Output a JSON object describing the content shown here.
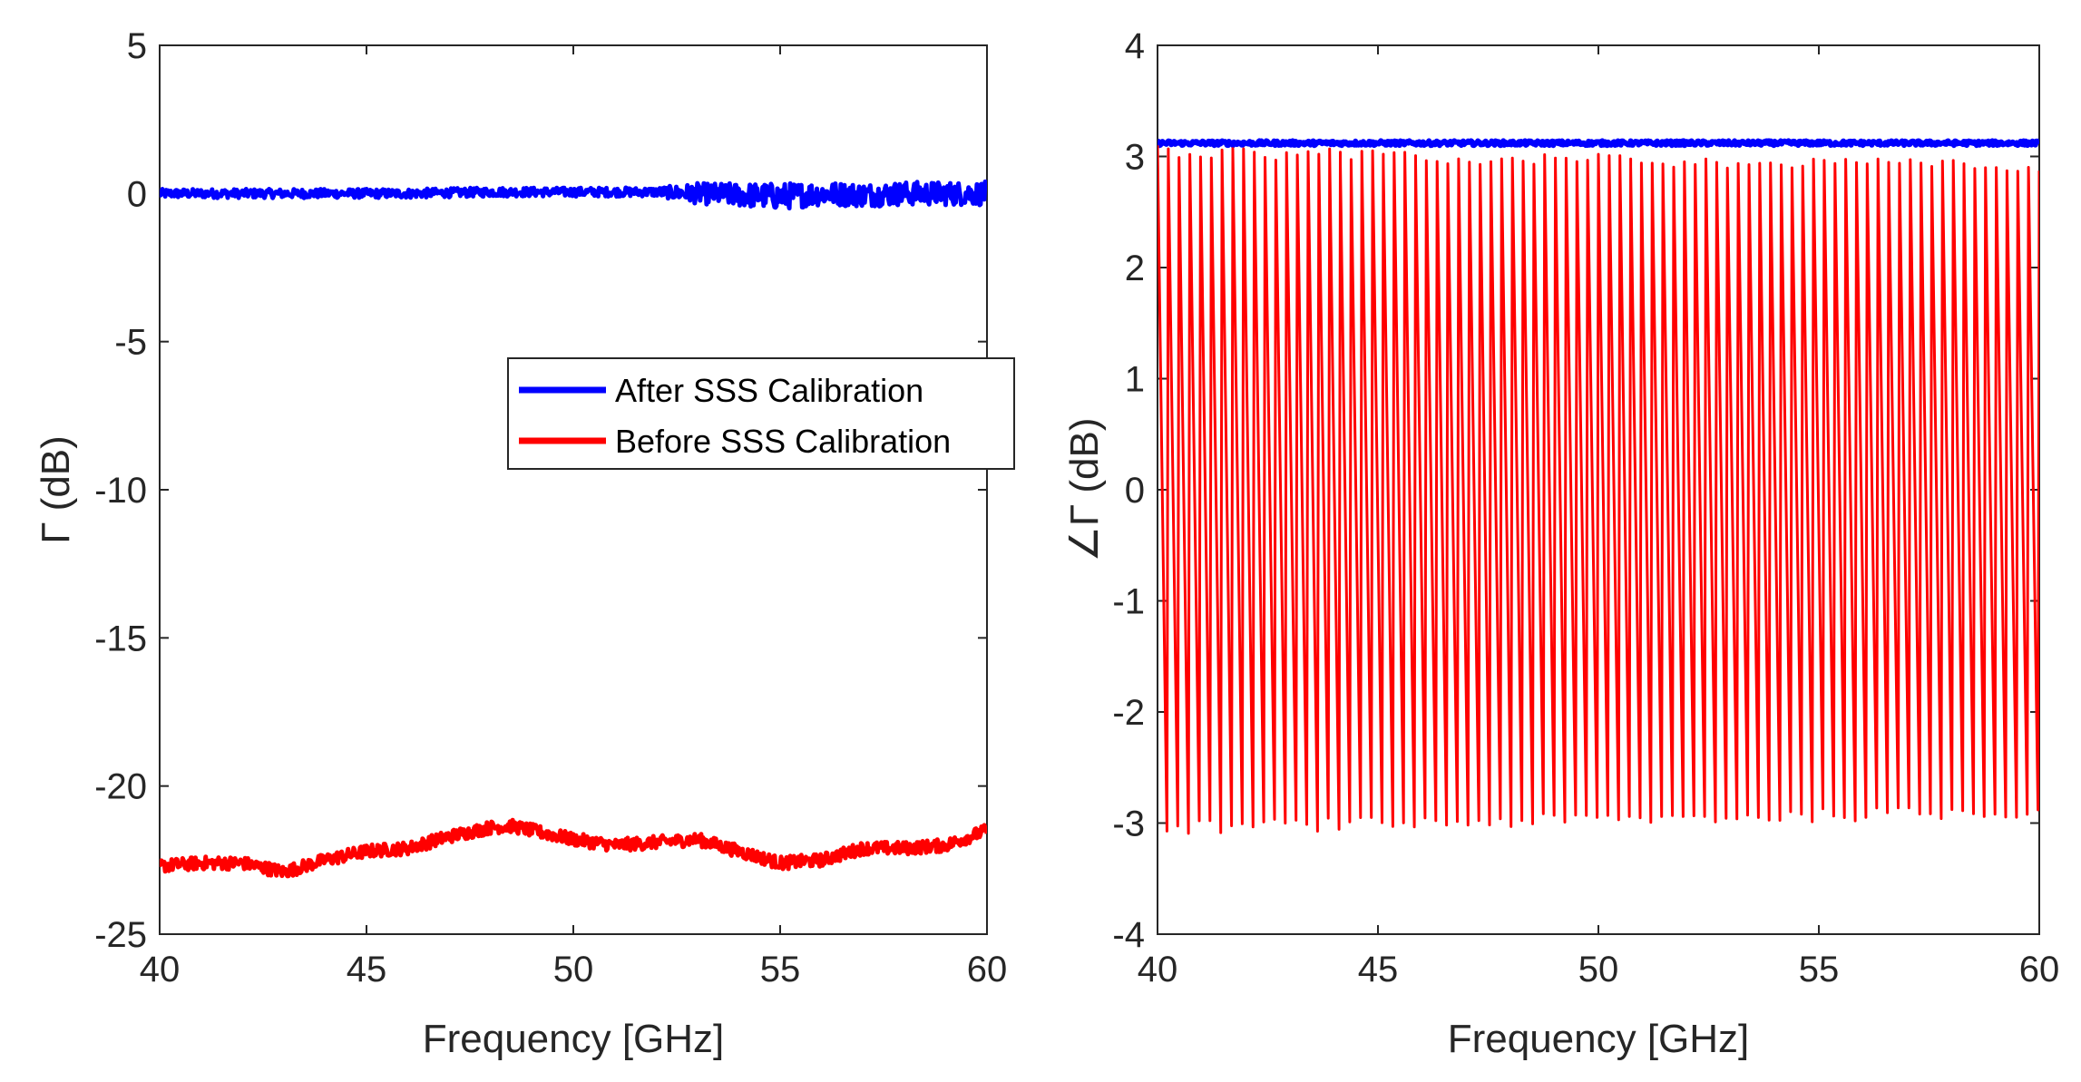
{
  "chart_data": [
    {
      "type": "line",
      "panel": "left",
      "title": "",
      "xlabel": "Frequency [GHz]",
      "ylabel": "Γ (dB)",
      "xlim": [
        40,
        60
      ],
      "ylim": [
        -25,
        5
      ],
      "xticks": [
        40,
        45,
        50,
        55,
        60
      ],
      "yticks": [
        5,
        0,
        -5,
        -10,
        -15,
        -20,
        -25
      ],
      "xtick_labels": [
        "40",
        "45",
        "50",
        "55",
        "60"
      ],
      "ytick_labels": [
        "5",
        "0",
        "-5",
        "-10",
        "-15",
        "-20",
        "-25"
      ],
      "legend": {
        "placement": "center-right",
        "entries": [
          "After SSS Calibration",
          "Before SSS Calibration"
        ]
      },
      "series": [
        {
          "name": "After SSS Calibration",
          "color": "#0000ff",
          "x": [
            40,
            42,
            44,
            46,
            48,
            50,
            52,
            53,
            54,
            55,
            56,
            57,
            58,
            59,
            60
          ],
          "y": [
            0,
            0,
            0,
            0,
            0.05,
            0.05,
            0.05,
            0,
            -0.05,
            -0.1,
            0,
            -0.05,
            0,
            0,
            0
          ],
          "noise_amplitude": [
            0.15,
            0.15,
            0.15,
            0.15,
            0.15,
            0.15,
            0.15,
            0.35,
            0.4,
            0.45,
            0.4,
            0.4,
            0.4,
            0.4,
            0.4
          ]
        },
        {
          "name": "Before SSS Calibration",
          "color": "#ff0000",
          "x": [
            40,
            41,
            42,
            43,
            44,
            45,
            46,
            47,
            48,
            48.5,
            49,
            50,
            51,
            52,
            53,
            54,
            55,
            56,
            57,
            58,
            59,
            60
          ],
          "y": [
            -22.7,
            -22.6,
            -22.6,
            -22.9,
            -22.5,
            -22.2,
            -22.1,
            -21.7,
            -21.4,
            -21.35,
            -21.5,
            -21.8,
            -22.0,
            -21.9,
            -21.8,
            -22.2,
            -22.6,
            -22.5,
            -22.1,
            -22.1,
            -22.0,
            -21.5
          ],
          "noise_amplitude": 0.22
        }
      ]
    },
    {
      "type": "line",
      "panel": "right",
      "title": "",
      "xlabel": "Frequency [GHz]",
      "ylabel": "∠Γ (dB)",
      "xlim": [
        40,
        60
      ],
      "ylim": [
        -4,
        4
      ],
      "xticks": [
        40,
        45,
        50,
        55,
        60
      ],
      "yticks": [
        4,
        3,
        2,
        1,
        0,
        -1,
        -2,
        -3,
        -4
      ],
      "xtick_labels": [
        "40",
        "45",
        "50",
        "55",
        "60"
      ],
      "ytick_labels": [
        "4",
        "3",
        "2",
        "1",
        "0",
        "-1",
        "-2",
        "-3",
        "-4"
      ],
      "series": [
        {
          "name": "After SSS Calibration",
          "color": "#0000ff",
          "x": [
            40,
            60
          ],
          "y": [
            3.12,
            3.12
          ],
          "noise_amplitude": 0.02
        },
        {
          "name": "Before SSS Calibration",
          "color": "#ff0000",
          "periods": 82,
          "x_start": 40,
          "x_end": 60,
          "y_high": [
            3.1,
            2.95
          ],
          "y_low": [
            -3.1,
            -2.95
          ]
        }
      ]
    }
  ]
}
